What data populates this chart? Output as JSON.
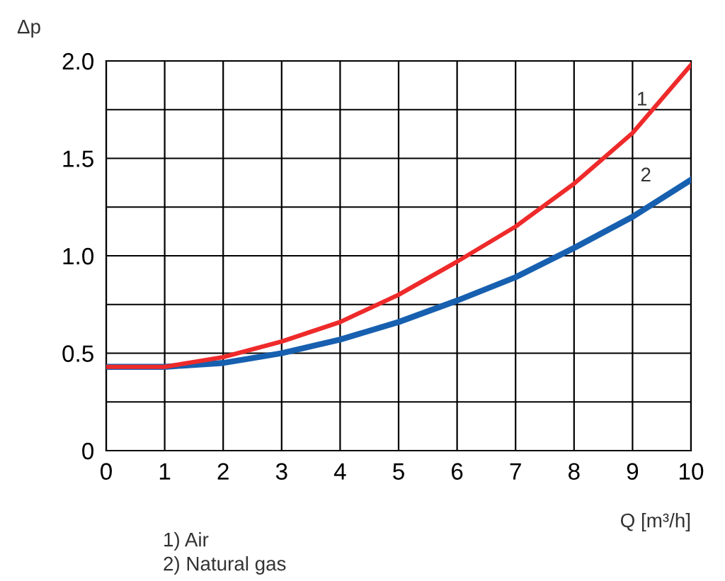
{
  "chart_data": {
    "type": "line",
    "xlabel": "Q [m³/h]",
    "ylabel": "Δp",
    "x": [
      0,
      1,
      2,
      3,
      4,
      5,
      6,
      7,
      8,
      9,
      10
    ],
    "series": [
      {
        "name": "1",
        "color": "#ee2a2a",
        "values": [
          0.43,
          0.43,
          0.48,
          0.56,
          0.66,
          0.8,
          0.97,
          1.15,
          1.37,
          1.63,
          1.98
        ]
      },
      {
        "name": "2",
        "color": "#1760b0",
        "values": [
          0.43,
          0.43,
          0.45,
          0.5,
          0.57,
          0.66,
          0.77,
          0.89,
          1.04,
          1.2,
          1.39
        ]
      }
    ],
    "xlim": [
      0,
      10
    ],
    "ylim": [
      0,
      2.0
    ],
    "xticks": [
      0,
      1,
      2,
      3,
      4,
      5,
      6,
      7,
      8,
      9,
      10
    ],
    "yticks": [
      0,
      {
        "value": 0.25,
        "label": null
      },
      0.5,
      {
        "value": 0.75,
        "label": null
      },
      {
        "value": 1,
        "label": "1.0"
      },
      {
        "value": 1.25,
        "label": null
      },
      1.5,
      {
        "value": 1.75,
        "label": null
      },
      {
        "value": 2,
        "label": "2.0"
      }
    ],
    "grid": true,
    "legend": false,
    "marker": "none",
    "line_style": "solid",
    "annotations": [
      "1) Air",
      "2) Natural gas"
    ]
  }
}
